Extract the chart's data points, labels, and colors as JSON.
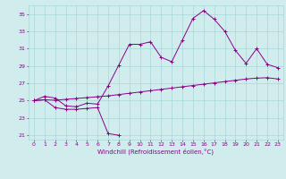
{
  "xlabel": "Windchill (Refroidissement éolien,°C)",
  "line1_x": [
    0,
    1,
    2,
    3,
    4,
    5,
    6,
    7,
    8
  ],
  "line1_y": [
    25.0,
    25.1,
    24.2,
    24.0,
    24.0,
    24.1,
    24.2,
    21.2,
    21.0
  ],
  "line2_x": [
    0,
    1,
    2,
    3,
    4,
    5,
    6,
    7,
    8,
    9,
    10,
    11,
    12,
    13,
    14,
    15,
    16,
    17,
    18,
    19,
    20,
    21,
    22,
    23
  ],
  "line2_y": [
    25.0,
    25.5,
    25.3,
    24.4,
    24.3,
    24.7,
    24.6,
    26.7,
    29.1,
    31.5,
    31.5,
    31.8,
    30.0,
    29.5,
    32.0,
    34.5,
    35.4,
    34.4,
    33.0,
    30.8,
    29.3,
    31.0,
    29.2,
    28.8
  ],
  "line3_x": [
    0,
    1,
    2,
    3,
    4,
    5,
    6,
    7,
    8,
    9,
    10,
    11,
    12,
    13,
    14,
    15,
    16,
    17,
    18,
    19,
    20,
    21,
    22,
    23
  ],
  "line3_y": [
    25.0,
    25.1,
    25.05,
    25.15,
    25.25,
    25.35,
    25.45,
    25.55,
    25.7,
    25.85,
    26.0,
    26.15,
    26.3,
    26.45,
    26.6,
    26.75,
    26.9,
    27.05,
    27.2,
    27.35,
    27.5,
    27.6,
    27.65,
    27.5
  ],
  "color": "#8b008b",
  "bg_color": "#d0ecec",
  "grid_color": "#a8d8d8",
  "ylim": [
    20.5,
    36.0
  ],
  "yticks": [
    21,
    23,
    25,
    27,
    29,
    31,
    33,
    35
  ],
  "xticks": [
    0,
    1,
    2,
    3,
    4,
    5,
    6,
    7,
    8,
    9,
    10,
    11,
    12,
    13,
    14,
    15,
    16,
    17,
    18,
    19,
    20,
    21,
    22,
    23
  ]
}
